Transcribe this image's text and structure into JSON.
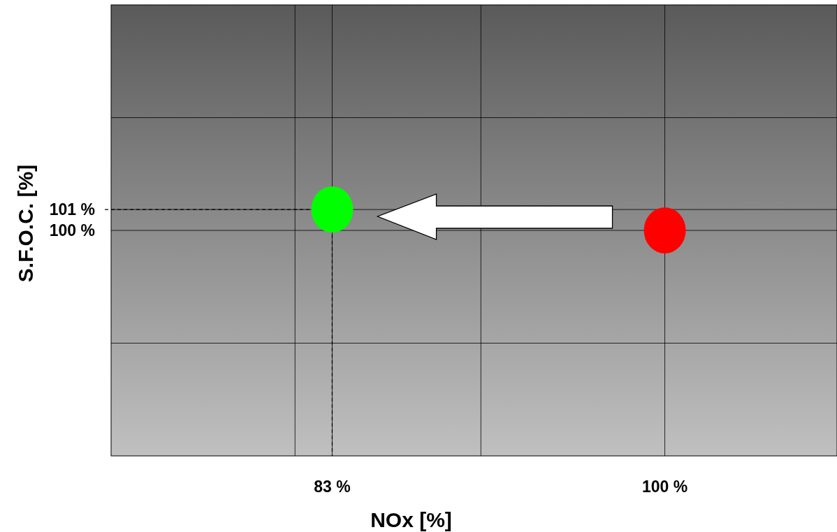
{
  "chart_data": {
    "type": "scatter",
    "xlabel": "NOx [%]",
    "ylabel": "S.F.O.C. [%]",
    "xlim": [
      71.7,
      108.8
    ],
    "ylim": [
      89.2,
      110.8
    ],
    "xticks": [
      {
        "value": 81.1,
        "label": null
      },
      {
        "value": 83,
        "label": "83 %"
      },
      {
        "value": 90.6,
        "label": null
      },
      {
        "value": 100,
        "label": "100 %"
      }
    ],
    "yticks": [
      {
        "value": 94.6,
        "label": null
      },
      {
        "value": 100,
        "label": "100 %"
      },
      {
        "value": 101,
        "label": "101 %"
      },
      {
        "value": 105.4,
        "label": null
      }
    ],
    "grid": true,
    "marker": "circle",
    "series": [
      {
        "x": [
          83,
          100
        ],
        "values": [
          101,
          100
        ],
        "colors": [
          "#00ff00",
          "#ff0000"
        ]
      }
    ]
  }
}
